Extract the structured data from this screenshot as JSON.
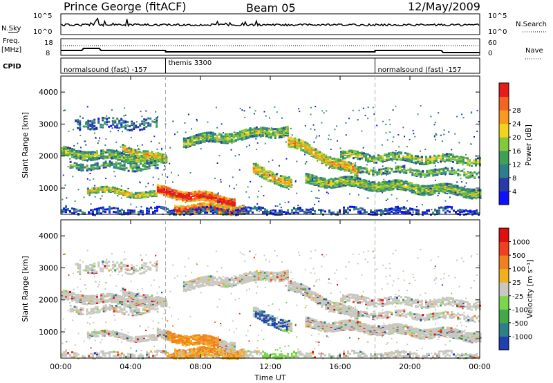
{
  "header": {
    "station": "Prince George (fitACF)",
    "beam": "Beam 05",
    "date": "12/May/2009"
  },
  "top_panels": {
    "nsky_label": "N.Sky",
    "nsearch_label": "N.Search",
    "count_ticks": [
      "10^5",
      "10^0"
    ],
    "freq_label": "Freq.",
    "freq_unit": "[MHz]",
    "freq_ticks": [
      "18",
      "8"
    ],
    "nave_label": "Nave",
    "nave_ticks": [
      "60",
      "0"
    ],
    "cpid_label": "CPID",
    "cpid_segments": [
      {
        "label": "normalsound (fast)  -157",
        "start_hour": 0,
        "end_hour": 6
      },
      {
        "label": "themis 3300",
        "start_hour": 6,
        "end_hour": 18
      },
      {
        "label": "normalsound (fast)  -157",
        "start_hour": 18,
        "end_hour": 24
      }
    ]
  },
  "chart_data": [
    {
      "type": "heatmap",
      "panel": "power",
      "ylabel": "Slant Range [km]",
      "y_ticks": [
        "1000",
        "2000",
        "3000",
        "4000"
      ],
      "ylim": [
        180,
        4500
      ],
      "xlim": [
        0,
        24
      ],
      "colorbar_label": "Power [dB]",
      "colorbar_ticks": [
        "4",
        "8",
        "12",
        "16",
        "20",
        "24",
        "28"
      ],
      "colorbar_range": [
        0,
        30
      ],
      "colors": [
        "#1010ff",
        "#2a3aa8",
        "#2e7f8c",
        "#3f9e58",
        "#82c83a",
        "#f2d21e",
        "#f79a1e",
        "#f46422",
        "#e81b1b"
      ]
    },
    {
      "type": "heatmap",
      "panel": "velocity",
      "ylabel": "Slant Range [km]",
      "y_ticks": [
        "1000",
        "2000",
        "3000",
        "4000"
      ],
      "ylim": [
        180,
        4500
      ],
      "xlim": [
        0,
        24
      ],
      "colorbar_label": "Velocity [m s⁻¹]",
      "colorbar_ticks": [
        "1000",
        "500",
        "100",
        "25",
        "-25",
        "-100",
        "-500",
        "-1000"
      ],
      "colors": [
        "#2040b0",
        "#2f7f8a",
        "#44a84a",
        "#7ad64a",
        "#c8c8c0",
        "#f0b020",
        "#f08020",
        "#f04020",
        "#e01010"
      ]
    }
  ],
  "time_axis": {
    "ticks": [
      "00:00",
      "04:00",
      "08:00",
      "12:00",
      "16:00",
      "20:00",
      "00:00"
    ],
    "label": "Time UT"
  }
}
